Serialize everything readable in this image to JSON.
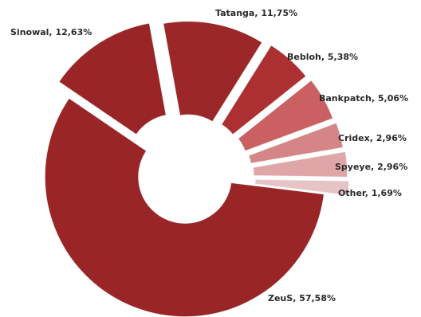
{
  "chart_data": {
    "type": "pie",
    "variant": "donut",
    "exploded": true,
    "legend": "none",
    "slices": [
      {
        "label": "ZeuS, 57,58%",
        "name": "ZeuS",
        "value": 57.58,
        "color": "#a3282a"
      },
      {
        "label": "Sinowal, 12,63%",
        "name": "Sinowal",
        "value": 12.63,
        "color": "#a3282a"
      },
      {
        "label": "Tatanga, 11,75%",
        "name": "Tatanga",
        "value": 11.75,
        "color": "#a52a2c"
      },
      {
        "label": "Bebloh, 5,38%",
        "name": "Bebloh",
        "value": 5.38,
        "color": "#b73436"
      },
      {
        "label": "Bankpatch, 5,06%",
        "name": "Bankpatch",
        "value": 5.06,
        "color": "#d76669"
      },
      {
        "label": "Cridex, 2,96%",
        "name": "Cridex",
        "value": 2.96,
        "color": "#e48e90"
      },
      {
        "label": "Spyeye, 2,96%",
        "name": "Spyeye",
        "value": 2.96,
        "color": "#eeb0b2"
      },
      {
        "label": "Other, 1,69%",
        "name": "Other",
        "value": 1.69,
        "color": "#f5d0d1"
      }
    ]
  }
}
